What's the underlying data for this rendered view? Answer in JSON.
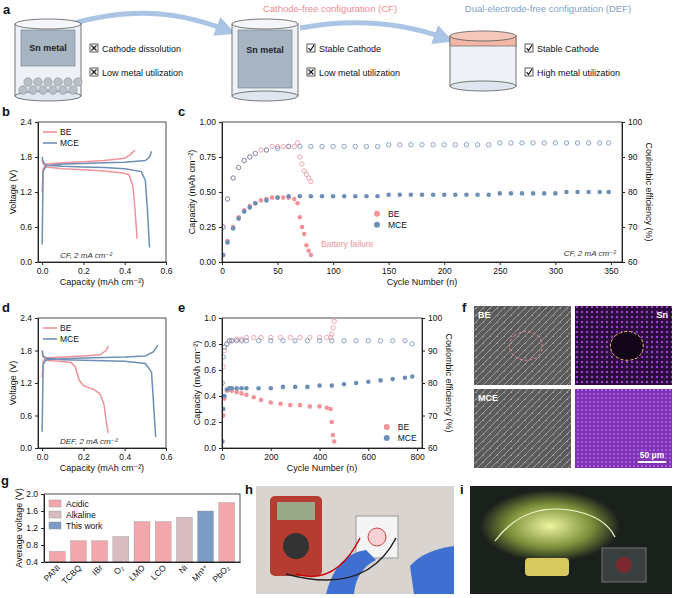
{
  "chart_data": [
    {
      "panel": "b",
      "type": "line",
      "xlabel": "Capacity (mAh cm⁻²)",
      "ylabel": "Voltage (V)",
      "annotations": [
        "CF, 2 mA cm⁻²"
      ],
      "legend": "upper left",
      "xlim": [
        -0.02,
        0.6
      ],
      "ylim": [
        0,
        2.4
      ],
      "xticks": [
        {
          "value": 0,
          "label": "0.0"
        },
        0.2,
        0.4,
        0.6
      ],
      "yticks": [
        {
          "value": 0,
          "label": "0.0"
        },
        0.6,
        1.2,
        1.8,
        2.4
      ],
      "series": [
        {
          "name": "BE",
          "color": "#f0939b",
          "x": [
            0,
            0.005,
            0.02,
            0.1,
            0.2,
            0.3,
            0.4,
            0.43,
            0.45,
            null,
            0,
            0.005,
            0.02,
            0.1,
            0.2,
            0.3,
            0.38,
            0.42,
            0.44,
            0.45,
            0.46
          ],
          "values": [
            1.2,
            1.6,
            1.68,
            1.7,
            1.72,
            1.74,
            1.78,
            1.85,
            1.92,
            null,
            1.75,
            1.68,
            1.63,
            1.6,
            1.58,
            1.56,
            1.53,
            1.5,
            1.3,
            0.9,
            0.4
          ]
        },
        {
          "name": "MCE",
          "color": "#6e8fb5",
          "x": [
            0,
            0.005,
            0.02,
            0.1,
            0.2,
            0.3,
            0.4,
            0.5,
            0.52,
            0.53,
            null,
            0,
            0.005,
            0.02,
            0.1,
            0.2,
            0.3,
            0.4,
            0.48,
            0.5,
            0.51,
            0.52
          ],
          "values": [
            0.3,
            1.55,
            1.65,
            1.68,
            1.69,
            1.7,
            1.71,
            1.74,
            1.8,
            1.9,
            null,
            1.8,
            1.72,
            1.66,
            1.64,
            1.63,
            1.62,
            1.6,
            1.55,
            1.4,
            0.9,
            0.25
          ]
        }
      ]
    },
    {
      "panel": "c",
      "type": "scatter",
      "marker": "circle",
      "xlabel": "Cycle Number (n)",
      "ylabel": "Capacity (mAh cm⁻²)",
      "y2label": "Coulombic efficiency (%)",
      "annotations": [
        "Battery failure",
        "CF, 2 mA cm⁻²"
      ],
      "legend": "lower center",
      "xlim": [
        0,
        360
      ],
      "ylim": [
        0,
        1
      ],
      "y2lim": [
        60,
        100
      ],
      "xticks": [
        0,
        50,
        100,
        150,
        200,
        250,
        300,
        350
      ],
      "yticks": [
        {
          "value": 0,
          "label": "0.00"
        },
        0.25,
        {
          "value": 0.5,
          "label": "0.50"
        },
        0.75,
        {
          "value": 1,
          "label": "1.00"
        }
      ],
      "y2ticks": [
        60,
        70,
        80,
        90,
        100
      ],
      "series": [
        {
          "name": "BE",
          "color": "#f0939b",
          "x": [
            1,
            5,
            10,
            15,
            20,
            25,
            30,
            35,
            40,
            45,
            50,
            55,
            60,
            65,
            68,
            70,
            72,
            74,
            76,
            78,
            80
          ],
          "values": [
            0.05,
            0.15,
            0.25,
            0.32,
            0.37,
            0.4,
            0.42,
            0.44,
            0.45,
            0.46,
            0.46,
            0.46,
            0.46,
            0.45,
            0.42,
            0.32,
            0.25,
            0.2,
            0.12,
            0.08,
            0.05
          ],
          "ce": [
            70,
            78,
            84,
            87,
            89,
            90,
            91,
            92,
            92,
            93,
            93,
            93,
            93,
            93,
            94,
            90,
            88,
            86,
            85,
            84,
            83
          ]
        },
        {
          "name": "MCE",
          "color": "#6e8fb5",
          "x": [
            1,
            5,
            10,
            15,
            20,
            25,
            30,
            40,
            50,
            60,
            70,
            80,
            90,
            100,
            110,
            120,
            130,
            140,
            150,
            160,
            170,
            180,
            190,
            200,
            210,
            220,
            230,
            240,
            250,
            260,
            270,
            280,
            290,
            300,
            310,
            320,
            330,
            340,
            348
          ],
          "values": [
            0.05,
            0.14,
            0.24,
            0.31,
            0.36,
            0.39,
            0.42,
            0.44,
            0.46,
            0.47,
            0.47,
            0.47,
            0.47,
            0.47,
            0.47,
            0.47,
            0.47,
            0.47,
            0.48,
            0.48,
            0.48,
            0.48,
            0.48,
            0.48,
            0.48,
            0.48,
            0.48,
            0.48,
            0.49,
            0.49,
            0.49,
            0.49,
            0.49,
            0.49,
            0.5,
            0.5,
            0.5,
            0.5,
            0.5
          ],
          "ce": [
            70,
            78,
            84,
            87,
            89,
            90,
            91,
            92,
            92.5,
            93,
            93,
            93,
            93,
            93,
            93,
            93,
            93,
            93,
            93.5,
            93.5,
            93.5,
            93.5,
            93.5,
            93.5,
            93.5,
            93.5,
            93.5,
            93.5,
            94,
            94,
            94,
            94,
            94,
            94,
            94,
            94,
            94,
            94,
            94
          ]
        }
      ]
    },
    {
      "panel": "d",
      "type": "line",
      "xlabel": "Capacity (mAh cm⁻²)",
      "ylabel": "Voltage (V)",
      "annotations": [
        "DEF, 2 mA cm⁻²"
      ],
      "legend": "upper left",
      "xlim": [
        -0.02,
        0.6
      ],
      "ylim": [
        0,
        2.4
      ],
      "xticks": [
        {
          "value": 0,
          "label": "0.0"
        },
        0.2,
        0.4,
        0.6
      ],
      "yticks": [
        {
          "value": 0,
          "label": "0.0"
        },
        0.6,
        1.2,
        1.8,
        2.4
      ],
      "series": [
        {
          "name": "BE",
          "color": "#f0939b",
          "x": [
            0,
            0.005,
            0.02,
            0.1,
            0.2,
            0.28,
            0.31,
            0.32,
            null,
            0,
            0.005,
            0.02,
            0.08,
            0.14,
            0.16,
            0.18,
            0.2,
            0.25,
            0.28,
            0.3,
            0.31,
            0.32
          ],
          "values": [
            1.3,
            1.6,
            1.66,
            1.68,
            1.7,
            1.72,
            1.8,
            1.88,
            null,
            1.75,
            1.68,
            1.62,
            1.6,
            1.58,
            1.5,
            1.25,
            1.15,
            1.08,
            1.0,
            0.8,
            0.5,
            0.28
          ]
        },
        {
          "name": "MCE",
          "color": "#6e8fb5",
          "x": [
            0,
            0.005,
            0.02,
            0.1,
            0.2,
            0.3,
            0.4,
            0.5,
            0.54,
            0.56,
            null,
            0,
            0.005,
            0.02,
            0.1,
            0.2,
            0.3,
            0.4,
            0.5,
            0.53,
            0.54,
            0.55
          ],
          "values": [
            0.3,
            1.55,
            1.63,
            1.65,
            1.66,
            1.67,
            1.68,
            1.7,
            1.78,
            1.9,
            null,
            1.8,
            1.7,
            1.66,
            1.63,
            1.62,
            1.61,
            1.6,
            1.56,
            1.4,
            0.8,
            0.2
          ]
        }
      ]
    },
    {
      "panel": "e",
      "type": "scatter",
      "marker": "circle",
      "xlabel": "Cycle Number (n)",
      "ylabel": "Capacity (mAh cm⁻²)",
      "y2label": "Coulombic efficiency (%)",
      "legend": "lower right",
      "xlim": [
        0,
        820
      ],
      "ylim": [
        0,
        1
      ],
      "y2lim": [
        60,
        100
      ],
      "xticks": [
        0,
        200,
        400,
        600,
        800
      ],
      "yticks": [
        {
          "value": 0,
          "label": "0.0"
        },
        0.2,
        0.4,
        0.6,
        0.8,
        {
          "value": 1,
          "label": "1.0"
        }
      ],
      "y2ticks": [
        60,
        70,
        80,
        90,
        100
      ],
      "series": [
        {
          "name": "BE",
          "color": "#f0939b",
          "x": [
            1,
            5,
            10,
            20,
            30,
            40,
            60,
            80,
            100,
            130,
            160,
            200,
            240,
            280,
            320,
            360,
            400,
            430,
            445,
            450,
            455,
            460
          ],
          "values": [
            0.05,
            0.25,
            0.38,
            0.44,
            0.45,
            0.44,
            0.43,
            0.42,
            0.41,
            0.39,
            0.37,
            0.35,
            0.34,
            0.33,
            0.33,
            0.32,
            0.32,
            0.31,
            0.3,
            0.2,
            0.1,
            0.05
          ],
          "ce": [
            70,
            85,
            90,
            92,
            93,
            93,
            93.5,
            93.5,
            94,
            94,
            94,
            94,
            94,
            94,
            94,
            94,
            94,
            94,
            94,
            95,
            97,
            99
          ]
        },
        {
          "name": "MCE",
          "color": "#6e8fb5",
          "x": [
            1,
            5,
            10,
            20,
            30,
            40,
            60,
            80,
            100,
            150,
            200,
            250,
            300,
            350,
            400,
            450,
            500,
            550,
            600,
            650,
            700,
            750,
            780
          ],
          "values": [
            0.05,
            0.3,
            0.4,
            0.45,
            0.46,
            0.46,
            0.46,
            0.46,
            0.46,
            0.46,
            0.46,
            0.47,
            0.47,
            0.47,
            0.48,
            0.48,
            0.49,
            0.5,
            0.51,
            0.52,
            0.53,
            0.54,
            0.55
          ],
          "ce": [
            80,
            88,
            91,
            92,
            93,
            93,
            93,
            93,
            93,
            93,
            93,
            93,
            93,
            93,
            93,
            93,
            93,
            93,
            93,
            93,
            93,
            93,
            92
          ]
        }
      ]
    },
    {
      "panel": "g",
      "type": "bar",
      "ylabel": "Average voltage (V)",
      "legend": "upper left",
      "categories": [
        "PANI",
        "TCBQ",
        "IBr",
        "O₂",
        "LMO",
        "LCO",
        "Ni",
        "Mn³⁺",
        "PbO₂"
      ],
      "ylim": [
        0.4,
        2.0
      ],
      "yticks": [
        0.4,
        0.8,
        1.2,
        1.6,
        {
          "value": 2,
          "label": "2.0"
        }
      ],
      "series": [
        {
          "name": "Acidic",
          "color": "#f2a7ad",
          "values": [
            0.65,
            0.9,
            0.9,
            null,
            1.35,
            1.35,
            null,
            null,
            1.8
          ]
        },
        {
          "name": "Alkaline",
          "color": "#d9bcc0",
          "values": [
            null,
            null,
            null,
            1.0,
            null,
            null,
            1.45,
            null,
            null
          ]
        },
        {
          "name": "This work",
          "color": "#7b9cc4",
          "values": [
            null,
            null,
            null,
            null,
            null,
            null,
            null,
            1.6,
            null
          ]
        }
      ]
    }
  ],
  "schematic": {
    "panel": "a",
    "stages": [
      {
        "metal": "Sn metal",
        "items": [
          {
            "text": "Cathode dissolution",
            "ok": false
          },
          {
            "text": "Low metal utilization",
            "ok": false
          }
        ]
      },
      {
        "title": "Cathode-free configuration (CF)",
        "metal": "Sn metal",
        "items": [
          {
            "text": "Stable Cathode",
            "ok": true
          },
          {
            "text": "Low metal utilization",
            "ok": false
          }
        ]
      },
      {
        "title": "Dual-electrode-free configuration (DEF)",
        "items": [
          {
            "text": "Stable Cathode",
            "ok": true
          },
          {
            "text": "High metal utilization",
            "ok": true
          }
        ]
      }
    ]
  },
  "sem": {
    "panel": "f",
    "rows": [
      "BE",
      "MCE"
    ],
    "element": "Sn",
    "scale_bar": "50 μm"
  },
  "photos": [
    {
      "panel": "h"
    },
    {
      "panel": "i"
    }
  ]
}
